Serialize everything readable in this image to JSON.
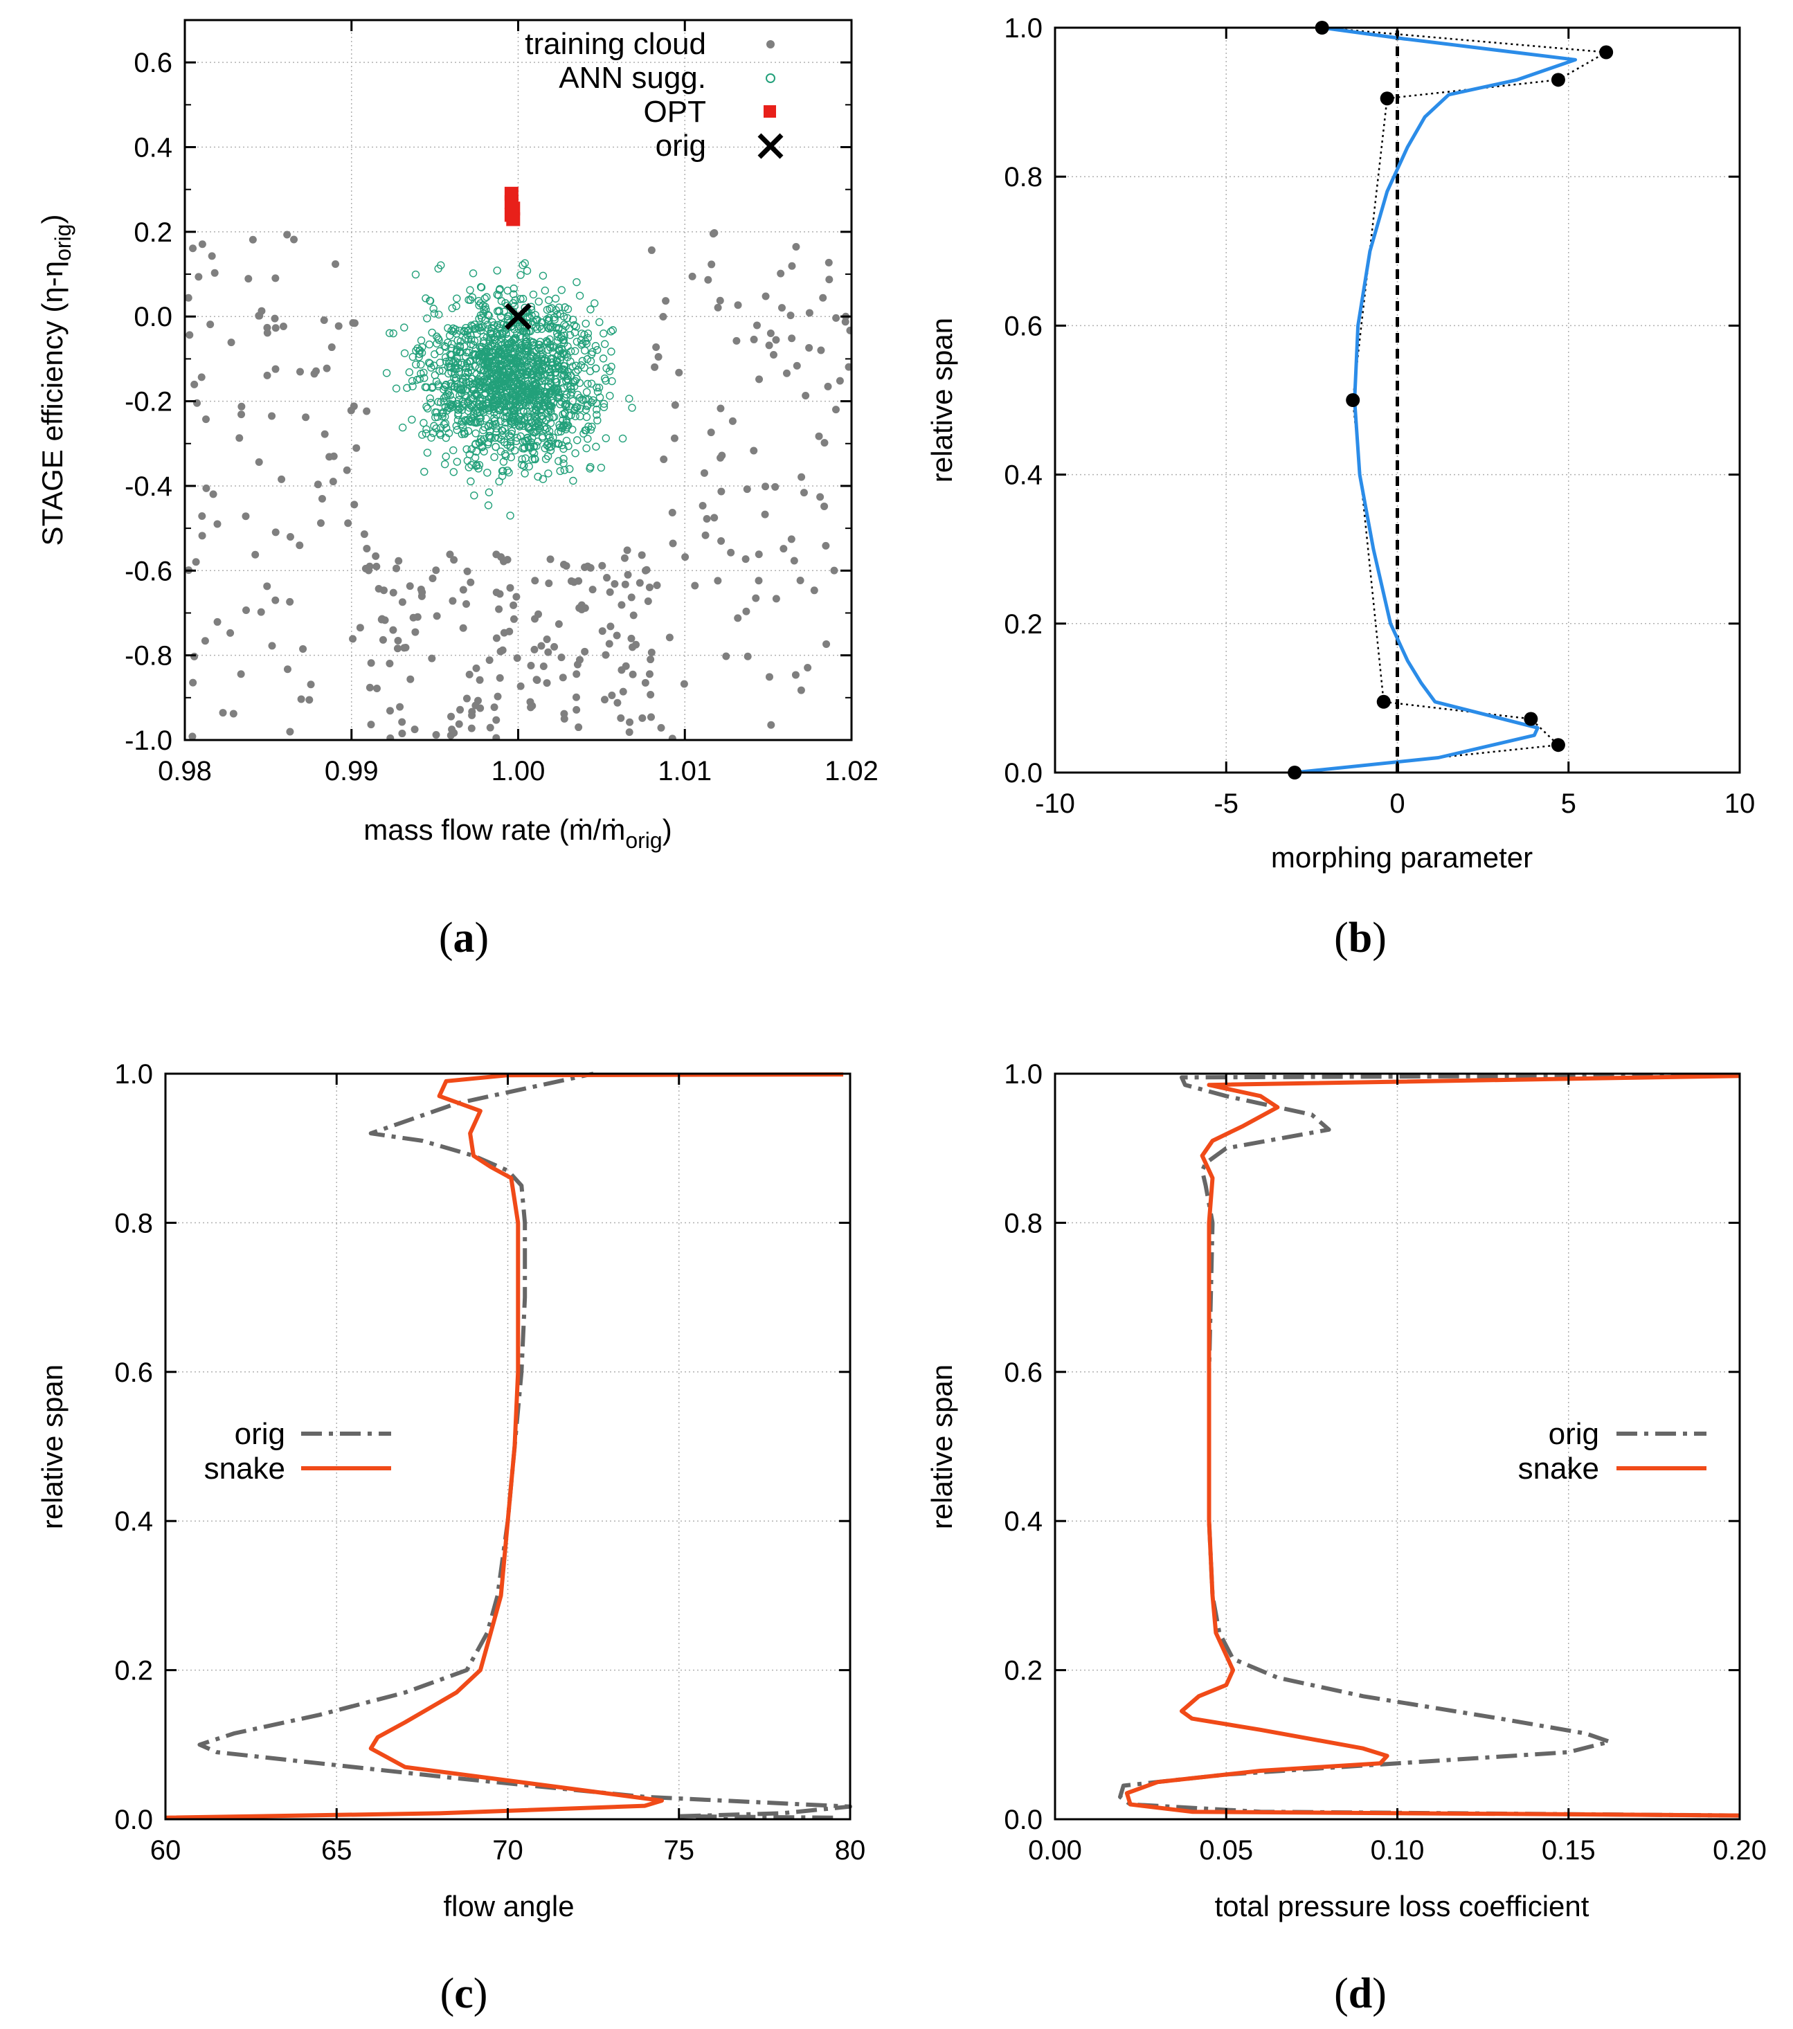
{
  "chart_data": [
    {
      "panel": "(a)",
      "panel_letter": "a",
      "type": "scatter",
      "xlabel_main": "mass flow rate (ṁ/ṁ",
      "xlabel_sub": "orig",
      "xlabel_end": ")",
      "ylabel_main": "STAGE efficiency (η-η",
      "ylabel_sub": "orig",
      "ylabel_end": ")",
      "xlim": [
        0.98,
        1.02
      ],
      "ylim": [
        -1.0,
        0.7
      ],
      "xticks": [
        "0.98",
        "0.99",
        "1.00",
        "1.01",
        "1.02"
      ],
      "yticks": [
        "-1.0",
        "-0.8",
        "-0.6",
        "-0.4",
        "-0.2",
        "0.0",
        "0.2",
        "0.4",
        "0.6"
      ],
      "grid": true,
      "legend_position": "top-right",
      "series": [
        {
          "name": "training cloud",
          "marker": "filled-circle",
          "color": "#7f7f7f",
          "distribution": {
            "x_range": [
              0.98,
              1.02
            ],
            "y_range": [
              -1.0,
              0.2
            ],
            "count": 380
          }
        },
        {
          "name": "ANN sugg.",
          "marker": "open-circle",
          "color": "#22a07a",
          "distribution": {
            "x_range": [
              0.9915,
              1.008
            ],
            "y_range": [
              -0.7,
              0.26
            ],
            "count": 1500
          }
        },
        {
          "name": "OPT",
          "marker": "filled-square",
          "color": "#e8201a",
          "points": [
            [
              0.9996,
              0.29
            ],
            [
              0.9996,
              0.27
            ],
            [
              0.9997,
              0.255
            ],
            [
              0.9996,
              0.24
            ],
            [
              0.9997,
              0.23
            ]
          ]
        },
        {
          "name": "orig",
          "marker": "cross",
          "color": "#000000",
          "points": [
            [
              1.0,
              0.0
            ]
          ]
        }
      ]
    },
    {
      "panel": "(b)",
      "panel_letter": "b",
      "type": "line",
      "xlabel": "morphing parameter",
      "ylabel": "relative span",
      "xlim": [
        -10,
        10
      ],
      "ylim": [
        0.0,
        1.0
      ],
      "xticks": [
        "-10",
        "-5",
        "0",
        "5",
        "10"
      ],
      "yticks": [
        "0.0",
        "0.2",
        "0.4",
        "0.6",
        "0.8",
        "1.0"
      ],
      "grid": true,
      "series": [
        {
          "name": "control points",
          "style": "dotted-with-markers",
          "color": "#000000",
          "x": [
            -3.0,
            4.7,
            3.9,
            -0.4,
            -1.3,
            -0.3,
            4.7,
            6.1,
            -2.2
          ],
          "y": [
            0.0,
            0.037,
            0.072,
            0.095,
            0.5,
            0.905,
            0.93,
            0.967,
            1.0
          ]
        },
        {
          "name": "spline",
          "style": "solid",
          "color": "#2b8ce8",
          "x": [
            -3.0,
            1.2,
            4.0,
            4.1,
            1.1,
            0.7,
            0.3,
            -0.2,
            -0.7,
            -1.1,
            -1.25,
            -1.15,
            -0.8,
            -0.3,
            0.3,
            0.8,
            1.5,
            3.5,
            5.2,
            0.2,
            -2.2
          ],
          "y": [
            0.0,
            0.02,
            0.05,
            0.06,
            0.095,
            0.12,
            0.15,
            0.2,
            0.3,
            0.4,
            0.5,
            0.6,
            0.7,
            0.78,
            0.84,
            0.88,
            0.91,
            0.93,
            0.957,
            0.985,
            1.0
          ]
        },
        {
          "name": "zero line",
          "style": "dashed",
          "color": "#000000",
          "x": [
            0,
            0
          ],
          "y": [
            0.0,
            1.0
          ]
        }
      ]
    },
    {
      "panel": "(c)",
      "panel_letter": "c",
      "type": "line",
      "xlabel": "flow angle",
      "ylabel": "relative span",
      "xlim": [
        60,
        80
      ],
      "ylim": [
        0.0,
        1.0
      ],
      "xticks": [
        "60",
        "65",
        "70",
        "75",
        "80"
      ],
      "yticks": [
        "0.0",
        "0.2",
        "0.4",
        "0.6",
        "0.8",
        "1.0"
      ],
      "grid": true,
      "legend_position": "center-left",
      "series": [
        {
          "name": "orig",
          "style": "dash-dot",
          "color": "#666666",
          "x": [
            79.5,
            75.0,
            78.0,
            80.0,
            74.0,
            68.5,
            61.5,
            61.0,
            62.0,
            64.5,
            67.0,
            68.8,
            69.4,
            69.7,
            70.0,
            70.2,
            70.4,
            70.5,
            70.5,
            70.4,
            70.0,
            69.0,
            67.5,
            66.0,
            68.5,
            70.0,
            71.5,
            72.5
          ],
          "y": [
            0.002,
            0.004,
            0.008,
            0.017,
            0.03,
            0.055,
            0.09,
            0.1,
            0.115,
            0.14,
            0.17,
            0.2,
            0.25,
            0.3,
            0.4,
            0.5,
            0.6,
            0.7,
            0.8,
            0.85,
            0.87,
            0.89,
            0.91,
            0.92,
            0.96,
            0.975,
            0.99,
            1.0
          ]
        },
        {
          "name": "snake",
          "style": "solid",
          "color": "#f04a18",
          "x": [
            60.0,
            68.0,
            74.0,
            74.5,
            72.0,
            67.0,
            66.0,
            66.2,
            67.0,
            68.5,
            69.2,
            69.5,
            69.8,
            70.0,
            70.2,
            70.3,
            70.3,
            70.1,
            69.5,
            69.0,
            68.9,
            69.2,
            68.0,
            68.2,
            70.0,
            79.8
          ],
          "y": [
            0.002,
            0.008,
            0.018,
            0.025,
            0.04,
            0.07,
            0.095,
            0.11,
            0.13,
            0.17,
            0.2,
            0.25,
            0.3,
            0.4,
            0.5,
            0.6,
            0.8,
            0.86,
            0.875,
            0.89,
            0.92,
            0.95,
            0.97,
            0.99,
            0.998,
            0.999
          ]
        }
      ]
    },
    {
      "panel": "(d)",
      "panel_letter": "d",
      "type": "line",
      "xlabel": "total pressure loss coefficient",
      "ylabel": "relative span",
      "xlim": [
        0.0,
        0.2
      ],
      "ylim": [
        0.0,
        1.0
      ],
      "xticks": [
        "0.00",
        "0.05",
        "0.10",
        "0.15",
        "0.20"
      ],
      "yticks": [
        "0.0",
        "0.2",
        "0.4",
        "0.6",
        "0.8",
        "1.0"
      ],
      "grid": true,
      "legend_position": "center-right",
      "series": [
        {
          "name": "orig",
          "style": "dash-dot",
          "color": "#666666",
          "x": [
            0.2,
            0.06,
            0.022,
            0.019,
            0.02,
            0.05,
            0.1,
            0.15,
            0.162,
            0.155,
            0.13,
            0.09,
            0.065,
            0.052,
            0.048,
            0.046,
            0.045,
            0.045,
            0.046,
            0.044,
            0.043,
            0.044,
            0.05,
            0.08,
            0.075,
            0.05,
            0.038,
            0.037,
            0.2
          ],
          "y": [
            0.005,
            0.01,
            0.02,
            0.03,
            0.045,
            0.06,
            0.075,
            0.09,
            0.104,
            0.115,
            0.135,
            0.165,
            0.19,
            0.215,
            0.25,
            0.3,
            0.4,
            0.6,
            0.8,
            0.85,
            0.87,
            0.88,
            0.9,
            0.925,
            0.945,
            0.97,
            0.985,
            0.995,
            0.998
          ]
        },
        {
          "name": "snake",
          "style": "solid",
          "color": "#f04a18",
          "x": [
            0.2,
            0.04,
            0.022,
            0.021,
            0.03,
            0.06,
            0.095,
            0.097,
            0.09,
            0.06,
            0.04,
            0.037,
            0.042,
            0.05,
            0.052,
            0.05,
            0.047,
            0.046,
            0.045,
            0.045,
            0.045,
            0.046,
            0.044,
            0.043,
            0.046,
            0.055,
            0.065,
            0.06,
            0.045,
            0.2
          ],
          "y": [
            0.005,
            0.01,
            0.02,
            0.035,
            0.05,
            0.065,
            0.075,
            0.085,
            0.095,
            0.12,
            0.135,
            0.145,
            0.165,
            0.18,
            0.2,
            0.22,
            0.25,
            0.3,
            0.4,
            0.6,
            0.8,
            0.86,
            0.88,
            0.89,
            0.91,
            0.93,
            0.955,
            0.97,
            0.985,
            0.997
          ]
        }
      ]
    }
  ]
}
